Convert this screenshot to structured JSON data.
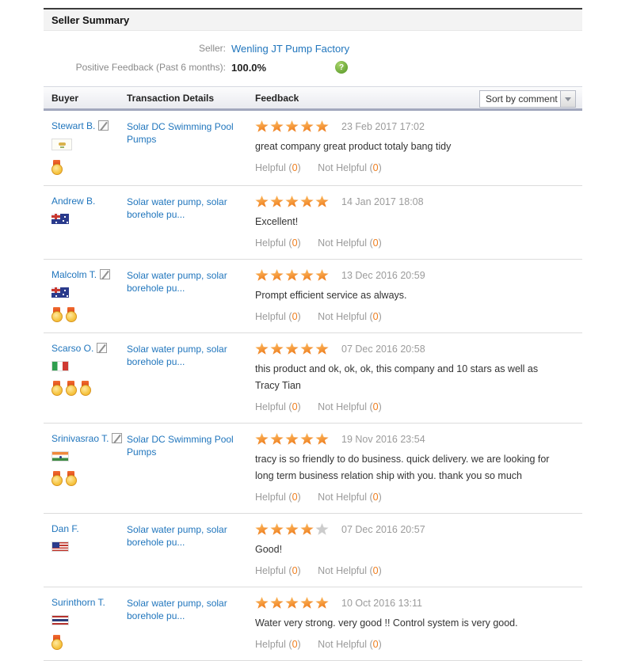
{
  "header": {
    "title": "Seller Summary"
  },
  "summary": {
    "seller_label": "Seller:",
    "seller_name": "Wenling JT Pump Factory",
    "feedback_label": "Positive Feedback (Past 6 months):",
    "feedback_value": "100.0%",
    "help_icon": "question-mark-circle-icon",
    "help_glyph": "?"
  },
  "table": {
    "columns": [
      "Buyer",
      "Transaction Details",
      "Feedback"
    ],
    "sort_dropdown": {
      "value": "Sort by comment",
      "icon": "chevron-down-icon"
    },
    "helpful_label": "Helpful",
    "not_helpful_label": "Not Helpful",
    "rows": [
      {
        "buyer": {
          "name": "Stewart B.",
          "has_edit_icon": true,
          "flag": "cyprus",
          "medals": 1
        },
        "product": "Solar DC Swimming Pool Pumps",
        "rating": 5,
        "date": "23 Feb 2017 17:02",
        "comment": "great company great product totaly bang tidy",
        "helpful_count": "0",
        "not_helpful_count": "0"
      },
      {
        "buyer": {
          "name": "Andrew B.",
          "has_edit_icon": false,
          "flag": "australia",
          "medals": 0
        },
        "product": "Solar water pump, solar borehole pu...",
        "rating": 5,
        "date": "14 Jan 2017 18:08",
        "comment": "Excellent!",
        "helpful_count": "0",
        "not_helpful_count": "0"
      },
      {
        "buyer": {
          "name": "Malcolm T.",
          "has_edit_icon": true,
          "flag": "australia",
          "medals": 2
        },
        "product": "Solar water pump, solar borehole pu...",
        "rating": 5,
        "date": "13 Dec 2016 20:59",
        "comment": "Prompt efficient service as always.",
        "helpful_count": "0",
        "not_helpful_count": "0"
      },
      {
        "buyer": {
          "name": "Scarso O.",
          "has_edit_icon": true,
          "flag": "italy",
          "medals": 3
        },
        "product": "Solar water pump, solar borehole pu...",
        "rating": 5,
        "date": "07 Dec 2016 20:58",
        "comment": "this product and ok, ok, ok, this company and 10 stars as well as Tracy Tian",
        "helpful_count": "0",
        "not_helpful_count": "0"
      },
      {
        "buyer": {
          "name": "Srinivasrao T.",
          "has_edit_icon": true,
          "flag": "india",
          "medals": 2
        },
        "product": "Solar DC Swimming Pool Pumps",
        "rating": 5,
        "date": "19 Nov 2016 23:54",
        "comment": "tracy is so friendly to do business. quick delivery. we are looking for long term business relation ship with you. thank you so much",
        "helpful_count": "0",
        "not_helpful_count": "0"
      },
      {
        "buyer": {
          "name": "Dan F.",
          "has_edit_icon": false,
          "flag": "usa",
          "medals": 0
        },
        "product": "Solar water pump, solar borehole pu...",
        "rating": 4,
        "date": "07 Dec 2016 20:57",
        "comment": "Good!",
        "helpful_count": "0",
        "not_helpful_count": "0"
      },
      {
        "buyer": {
          "name": "Surinthorn T.",
          "has_edit_icon": false,
          "flag": "thailand",
          "medals": 1
        },
        "product": "Solar water pump, solar borehole pu...",
        "rating": 5,
        "date": "10 Oct 2016 13:11",
        "comment": "Water very strong. very good !! Control system is very good.",
        "helpful_count": "0",
        "not_helpful_count": "0"
      }
    ]
  },
  "colors": {
    "link_blue": "#2176bd",
    "star_orange": "#ee7d1d",
    "count_orange": "#ee7d1d",
    "help_green": "#6aa637",
    "header_border": "#a2a8bd",
    "label_gray": "#8a8a8a"
  }
}
